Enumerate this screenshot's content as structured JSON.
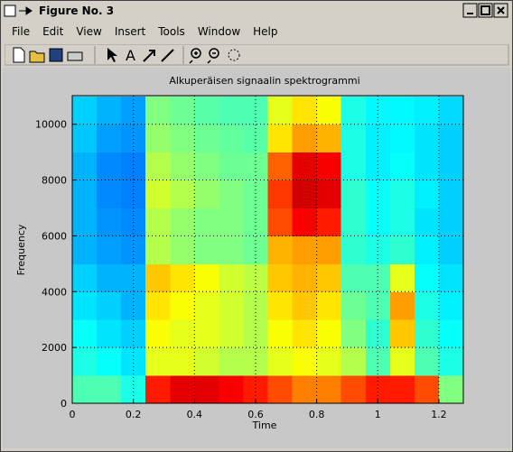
{
  "window": {
    "title": "Figure No. 3"
  },
  "menu": [
    "File",
    "Edit",
    "View",
    "Insert",
    "Tools",
    "Window",
    "Help"
  ],
  "toolbar": {
    "text_tool": "A"
  },
  "chart_data": {
    "type": "heatmap",
    "title": "Alkuperäisen signaalin spektrogrammi",
    "x_label": "Time",
    "y_label": "Frequency",
    "x": [
      0.04,
      0.12,
      0.2,
      0.28,
      0.36,
      0.44,
      0.52,
      0.6,
      0.68,
      0.76,
      0.84,
      0.92,
      1.0,
      1.08,
      1.16,
      1.24
    ],
    "y": [
      500,
      1500,
      2500,
      3500,
      4500,
      5500,
      6500,
      7500,
      8500,
      9500,
      10500
    ],
    "values": [
      [
        0.45,
        0.45,
        0.4,
        0.85,
        0.9,
        0.9,
        0.88,
        0.85,
        0.8,
        0.75,
        0.75,
        0.8,
        0.85,
        0.85,
        0.8,
        0.5
      ],
      [
        0.4,
        0.38,
        0.35,
        0.6,
        0.6,
        0.58,
        0.55,
        0.55,
        0.6,
        0.62,
        0.6,
        0.55,
        0.45,
        0.6,
        0.45,
        0.4
      ],
      [
        0.38,
        0.35,
        0.33,
        0.62,
        0.6,
        0.6,
        0.58,
        0.55,
        0.62,
        0.65,
        0.62,
        0.5,
        0.42,
        0.68,
        0.42,
        0.38
      ],
      [
        0.35,
        0.33,
        0.3,
        0.65,
        0.62,
        0.6,
        0.58,
        0.55,
        0.65,
        0.68,
        0.65,
        0.48,
        0.45,
        0.72,
        0.4,
        0.36
      ],
      [
        0.33,
        0.3,
        0.3,
        0.68,
        0.65,
        0.62,
        0.58,
        0.56,
        0.68,
        0.7,
        0.68,
        0.45,
        0.45,
        0.6,
        0.38,
        0.35
      ],
      [
        0.3,
        0.28,
        0.27,
        0.55,
        0.52,
        0.5,
        0.5,
        0.48,
        0.7,
        0.72,
        0.72,
        0.42,
        0.4,
        0.42,
        0.36,
        0.33
      ],
      [
        0.3,
        0.27,
        0.26,
        0.55,
        0.52,
        0.5,
        0.5,
        0.48,
        0.8,
        0.88,
        0.85,
        0.42,
        0.38,
        0.4,
        0.35,
        0.33
      ],
      [
        0.3,
        0.26,
        0.25,
        0.58,
        0.55,
        0.52,
        0.5,
        0.48,
        0.82,
        0.92,
        0.9,
        0.42,
        0.38,
        0.4,
        0.36,
        0.33
      ],
      [
        0.3,
        0.26,
        0.25,
        0.55,
        0.52,
        0.5,
        0.48,
        0.48,
        0.78,
        0.9,
        0.88,
        0.4,
        0.36,
        0.38,
        0.35,
        0.33
      ],
      [
        0.32,
        0.28,
        0.27,
        0.52,
        0.5,
        0.48,
        0.47,
        0.46,
        0.65,
        0.72,
        0.7,
        0.4,
        0.36,
        0.37,
        0.35,
        0.33
      ],
      [
        0.33,
        0.3,
        0.28,
        0.5,
        0.48,
        0.46,
        0.45,
        0.45,
        0.6,
        0.65,
        0.62,
        0.4,
        0.37,
        0.37,
        0.36,
        0.34
      ]
    ],
    "colormap": "jet",
    "xlim": [
      0,
      1.28
    ],
    "xticks": [
      0,
      0.2,
      0.4,
      0.6,
      0.8,
      1,
      1.2
    ],
    "ylim": [
      0,
      11025
    ],
    "yticks": [
      0,
      2000,
      4000,
      6000,
      8000,
      10000
    ],
    "grid": true
  }
}
